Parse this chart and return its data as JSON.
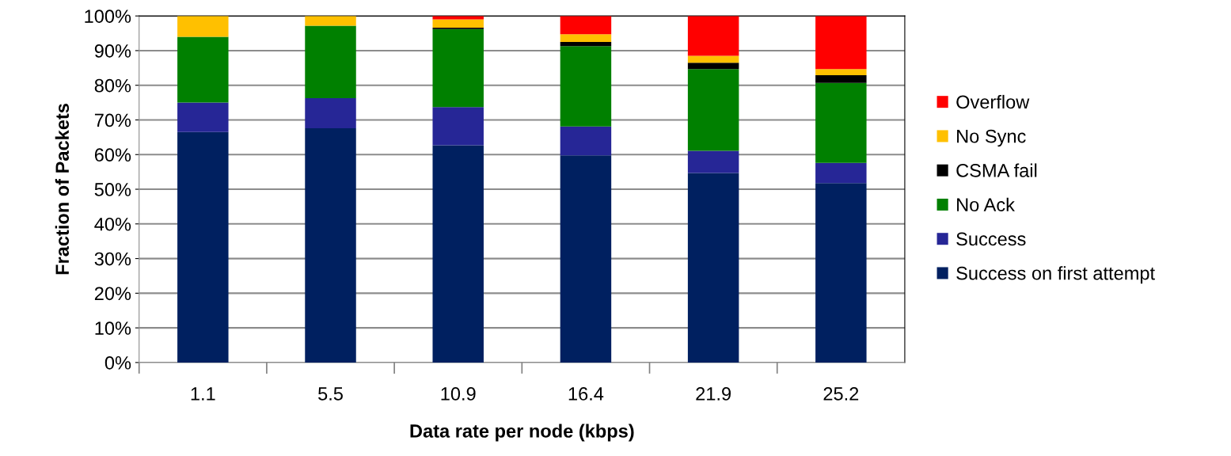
{
  "chart_data": {
    "type": "bar",
    "stacked": true,
    "xlabel": "Data rate per node (kbps)",
    "ylabel": "Fraction of Packets",
    "categories": [
      "1.1",
      "5.5",
      "10.9",
      "16.4",
      "21.9",
      "25.2"
    ],
    "series": [
      {
        "name": "Success on first attempt",
        "color": "#002060",
        "values": [
          66.5,
          67.6,
          62.7,
          59.8,
          54.7,
          51.8
        ]
      },
      {
        "name": "Success",
        "color": "#262696",
        "values": [
          8.5,
          8.7,
          11,
          8.3,
          6.4,
          5.8
        ]
      },
      {
        "name": "No Ack",
        "color": "#008000",
        "values": [
          19,
          20.9,
          22.5,
          23.2,
          23.6,
          23.1
        ]
      },
      {
        "name": "CSMA fail",
        "color": "#000000",
        "values": [
          0,
          0,
          0.4,
          1.2,
          1.8,
          2.2
        ]
      },
      {
        "name": "No Sync",
        "color": "#ffc000",
        "values": [
          6,
          2.8,
          2.4,
          2.2,
          2.0,
          1.8
        ]
      },
      {
        "name": "Overflow",
        "color": "#ff0000",
        "values": [
          0,
          0,
          1,
          5.3,
          11.5,
          15.3
        ]
      }
    ],
    "ylim": [
      0,
      100
    ],
    "yticks": [
      {
        "value": 0,
        "label": "0%"
      },
      {
        "value": 10,
        "label": "10%"
      },
      {
        "value": 20,
        "label": "20%"
      },
      {
        "value": 30,
        "label": "30%"
      },
      {
        "value": 40,
        "label": "40%"
      },
      {
        "value": 50,
        "label": "50%"
      },
      {
        "value": 60,
        "label": "60%"
      },
      {
        "value": 70,
        "label": "70%"
      },
      {
        "value": 80,
        "label": "80%"
      },
      {
        "value": 90,
        "label": "90%"
      },
      {
        "value": 100,
        "label": "100%"
      }
    ],
    "grid": "y",
    "legend": "right"
  }
}
